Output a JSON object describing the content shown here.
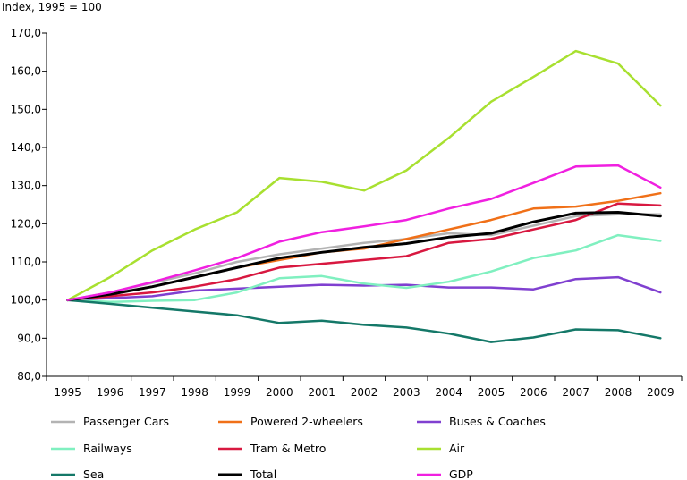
{
  "chart_data": {
    "type": "line",
    "ylabel": "Index, 1995 = 100",
    "ylim": [
      80,
      170
    ],
    "ytick_step": 10,
    "ytick_labels": [
      "80,0",
      "90,0",
      "100,0",
      "110,0",
      "120,0",
      "130,0",
      "140,0",
      "150,0",
      "160,0",
      "170,0"
    ],
    "x": [
      "1995",
      "1996",
      "1997",
      "1998",
      "1999",
      "2000",
      "2001",
      "2002",
      "2003",
      "2004",
      "2005",
      "2006",
      "2007",
      "2008",
      "2009"
    ],
    "grid": false,
    "legend_position": "bottom",
    "series": [
      {
        "name": "Passenger Cars",
        "color": "#b3b3b3",
        "values": [
          100,
          102,
          104.5,
          107,
          110,
          112,
          113.5,
          115,
          116,
          117.5,
          117,
          119.5,
          122,
          122.5,
          122.5
        ]
      },
      {
        "name": "Powered 2-wheelers",
        "color": "#f07018",
        "values": [
          100,
          101.5,
          103.5,
          106,
          108.5,
          110.5,
          112.5,
          113.5,
          116,
          118.5,
          121,
          124,
          124.5,
          126,
          128
        ]
      },
      {
        "name": "Buses & Coaches",
        "color": "#8040d0",
        "values": [
          100,
          100.5,
          101,
          102.5,
          103,
          103.5,
          104,
          103.8,
          104,
          103.3,
          103.3,
          102.8,
          105.5,
          106,
          102
        ]
      },
      {
        "name": "Railways",
        "color": "#80f0c0",
        "values": [
          100,
          99.5,
          99.8,
          100,
          102,
          105.7,
          106.3,
          104.3,
          103.2,
          104.8,
          107.5,
          111,
          113,
          117,
          115.5
        ]
      },
      {
        "name": "Tram & Metro",
        "color": "#d81840",
        "values": [
          100,
          101,
          102,
          103.5,
          105.5,
          108.5,
          109.5,
          110.5,
          111.5,
          115,
          116,
          118.5,
          121,
          125.3,
          124.8
        ]
      },
      {
        "name": "Air",
        "color": "#a8e030",
        "values": [
          100,
          106,
          113,
          118.5,
          123,
          132,
          131,
          128.7,
          134,
          142.5,
          152,
          158.5,
          165.3,
          162,
          151
        ]
      },
      {
        "name": "Sea",
        "color": "#147868",
        "values": [
          100,
          99,
          98,
          97,
          96,
          94,
          94.6,
          93.5,
          92.8,
          91.2,
          89,
          90.2,
          92.3,
          92.1,
          90
        ]
      },
      {
        "name": "Total",
        "color": "#000000",
        "values": [
          100,
          101.5,
          103.5,
          106,
          108.5,
          111,
          112.5,
          113.8,
          114.8,
          116.5,
          117.5,
          120.5,
          122.8,
          123,
          122
        ]
      },
      {
        "name": "GDP",
        "color": "#f020e0",
        "values": [
          100,
          102,
          104.7,
          107.8,
          111,
          115.3,
          117.8,
          119.3,
          121,
          124,
          126.5,
          130.7,
          135,
          135.3,
          129.5
        ]
      }
    ]
  }
}
